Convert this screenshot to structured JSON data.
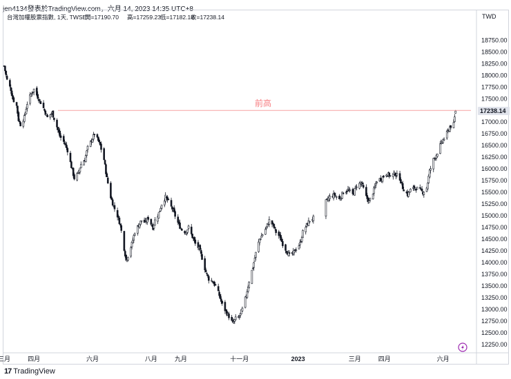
{
  "header": {
    "published_by": "jen4134發表於TradingView.com，六月 14, 2023 14:35 UTC+8"
  },
  "footer": {
    "logo": "17",
    "brand": "TradingView"
  },
  "legend": {
    "symbol": "台灣加權股票指數, 1天, TWSE",
    "open_label": "開=17190.70",
    "high_label": "高=17259.23",
    "low_label": "低=17182.18",
    "close_label": "收=17238.14"
  },
  "colors": {
    "candle": "#131722",
    "hline": "#f7a1a1",
    "annotation": "#f77c80",
    "price_label_bg": "#e0e3eb",
    "axis": "#d1d4dc",
    "icon": "#9c27b0"
  },
  "chart_data": {
    "type": "candlestick",
    "currency": "TWD",
    "ylim": [
      12100,
      19050
    ],
    "y_ticks": [
      12250,
      12500,
      12750,
      13000,
      13250,
      13500,
      13750,
      14000,
      14250,
      14500,
      14750,
      15000,
      15250,
      15500,
      15750,
      16000,
      16250,
      16500,
      16750,
      17000,
      17250,
      17500,
      17750,
      18000,
      18250,
      18500,
      18750
    ],
    "y_tick_labels": [
      "12250.00",
      "12500.00",
      "12750.00",
      "13000.00",
      "13250.00",
      "13500.00",
      "13750.00",
      "14000.00",
      "14250.00",
      "14500.00",
      "14750.00",
      "15000.00",
      "15250.00",
      "15500.00",
      "15750.00",
      "16000.00",
      "16250.00",
      "16500.00",
      "16750.00",
      "17000.00",
      "17250.00",
      "17500.00",
      "17750.00",
      "18000.00",
      "18250.00",
      "18500.00",
      "18750.00"
    ],
    "x_start": "2022-03-01",
    "x_end": "2023-06-30",
    "x_ticks": [
      {
        "date": "2022-03-01",
        "label": "三月"
      },
      {
        "date": "2022-04-01",
        "label": "四月"
      },
      {
        "date": "2022-06-01",
        "label": "六月"
      },
      {
        "date": "2022-08-01",
        "label": "八月"
      },
      {
        "date": "2022-09-01",
        "label": "九月"
      },
      {
        "date": "2022-11-01",
        "label": "十一月"
      },
      {
        "date": "2023-01-01",
        "label": "2023"
      },
      {
        "date": "2023-03-01",
        "label": "三月"
      },
      {
        "date": "2023-04-01",
        "label": "四月"
      },
      {
        "date": "2023-06-01",
        "label": "六月"
      }
    ],
    "last_price": 17238.14,
    "last_price_label": "17238.14",
    "horizontal_line": {
      "value": 17250,
      "label": "前高"
    },
    "close_series": [
      {
        "date": "2022-03-01",
        "close": 18200
      },
      {
        "date": "2022-03-04",
        "close": 17900
      },
      {
        "date": "2022-03-08",
        "close": 17700
      },
      {
        "date": "2022-03-10",
        "close": 17500
      },
      {
        "date": "2022-03-14",
        "close": 17350
      },
      {
        "date": "2022-03-16",
        "close": 17050
      },
      {
        "date": "2022-03-18",
        "close": 16950
      },
      {
        "date": "2022-03-22",
        "close": 17100
      },
      {
        "date": "2022-03-25",
        "close": 17400
      },
      {
        "date": "2022-03-29",
        "close": 17600
      },
      {
        "date": "2022-04-01",
        "close": 17700
      },
      {
        "date": "2022-04-06",
        "close": 17500
      },
      {
        "date": "2022-04-11",
        "close": 17300
      },
      {
        "date": "2022-04-15",
        "close": 17100
      },
      {
        "date": "2022-04-20",
        "close": 17200
      },
      {
        "date": "2022-04-25",
        "close": 16900
      },
      {
        "date": "2022-04-28",
        "close": 16700
      },
      {
        "date": "2022-05-03",
        "close": 16550
      },
      {
        "date": "2022-05-06",
        "close": 16400
      },
      {
        "date": "2022-05-10",
        "close": 16050
      },
      {
        "date": "2022-05-13",
        "close": 15800
      },
      {
        "date": "2022-05-17",
        "close": 15900
      },
      {
        "date": "2022-05-20",
        "close": 16100
      },
      {
        "date": "2022-05-24",
        "close": 16200
      },
      {
        "date": "2022-05-27",
        "close": 16450
      },
      {
        "date": "2022-06-01",
        "close": 16650
      },
      {
        "date": "2022-06-03",
        "close": 16750
      },
      {
        "date": "2022-06-07",
        "close": 16600
      },
      {
        "date": "2022-06-09",
        "close": 16500
      },
      {
        "date": "2022-06-13",
        "close": 16200
      },
      {
        "date": "2022-06-16",
        "close": 15800
      },
      {
        "date": "2022-06-20",
        "close": 15400
      },
      {
        "date": "2022-06-23",
        "close": 15200
      },
      {
        "date": "2022-06-27",
        "close": 15000
      },
      {
        "date": "2022-06-30",
        "close": 14800
      },
      {
        "date": "2022-07-04",
        "close": 14300
      },
      {
        "date": "2022-07-06",
        "close": 14050
      },
      {
        "date": "2022-07-08",
        "close": 14150
      },
      {
        "date": "2022-07-12",
        "close": 14400
      },
      {
        "date": "2022-07-15",
        "close": 14650
      },
      {
        "date": "2022-07-19",
        "close": 14800
      },
      {
        "date": "2022-07-22",
        "close": 14900
      },
      {
        "date": "2022-07-26",
        "close": 14850
      },
      {
        "date": "2022-07-29",
        "close": 14950
      },
      {
        "date": "2022-08-03",
        "close": 14750
      },
      {
        "date": "2022-08-05",
        "close": 14900
      },
      {
        "date": "2022-08-09",
        "close": 15050
      },
      {
        "date": "2022-08-12",
        "close": 15250
      },
      {
        "date": "2022-08-16",
        "close": 15400
      },
      {
        "date": "2022-08-19",
        "close": 15300
      },
      {
        "date": "2022-08-23",
        "close": 15150
      },
      {
        "date": "2022-08-26",
        "close": 15000
      },
      {
        "date": "2022-08-30",
        "close": 14800
      },
      {
        "date": "2022-09-02",
        "close": 14700
      },
      {
        "date": "2022-09-06",
        "close": 14650
      },
      {
        "date": "2022-09-09",
        "close": 14750
      },
      {
        "date": "2022-09-13",
        "close": 14550
      },
      {
        "date": "2022-09-16",
        "close": 14400
      },
      {
        "date": "2022-09-20",
        "close": 14300
      },
      {
        "date": "2022-09-23",
        "close": 14100
      },
      {
        "date": "2022-09-27",
        "close": 13800
      },
      {
        "date": "2022-09-30",
        "close": 13650
      },
      {
        "date": "2022-10-04",
        "close": 13600
      },
      {
        "date": "2022-10-07",
        "close": 13500
      },
      {
        "date": "2022-10-11",
        "close": 13300
      },
      {
        "date": "2022-10-14",
        "close": 13100
      },
      {
        "date": "2022-10-18",
        "close": 12950
      },
      {
        "date": "2022-10-21",
        "close": 12850
      },
      {
        "date": "2022-10-25",
        "close": 12700
      },
      {
        "date": "2022-10-28",
        "close": 12800
      },
      {
        "date": "2022-11-01",
        "close": 12850
      },
      {
        "date": "2022-11-04",
        "close": 13000
      },
      {
        "date": "2022-11-08",
        "close": 13300
      },
      {
        "date": "2022-11-11",
        "close": 13600
      },
      {
        "date": "2022-11-15",
        "close": 13900
      },
      {
        "date": "2022-11-18",
        "close": 14200
      },
      {
        "date": "2022-11-22",
        "close": 14500
      },
      {
        "date": "2022-11-25",
        "close": 14600
      },
      {
        "date": "2022-11-29",
        "close": 14750
      },
      {
        "date": "2022-12-02",
        "close": 14900
      },
      {
        "date": "2022-12-06",
        "close": 14800
      },
      {
        "date": "2022-12-09",
        "close": 14650
      },
      {
        "date": "2022-12-13",
        "close": 14550
      },
      {
        "date": "2022-12-16",
        "close": 14400
      },
      {
        "date": "2022-12-20",
        "close": 14250
      },
      {
        "date": "2022-12-23",
        "close": 14150
      },
      {
        "date": "2022-12-27",
        "close": 14200
      },
      {
        "date": "2022-12-30",
        "close": 14300
      },
      {
        "date": "2023-01-03",
        "close": 14400
      },
      {
        "date": "2023-01-06",
        "close": 14650
      },
      {
        "date": "2023-01-10",
        "close": 14800
      },
      {
        "date": "2023-01-13",
        "close": 14900
      },
      {
        "date": "2023-01-17",
        "close": 14950
      },
      {
        "date": "2023-01-30",
        "close": 15300
      },
      {
        "date": "2023-02-03",
        "close": 15400
      },
      {
        "date": "2023-02-08",
        "close": 15450
      },
      {
        "date": "2023-02-13",
        "close": 15350
      },
      {
        "date": "2023-02-17",
        "close": 15500
      },
      {
        "date": "2023-02-22",
        "close": 15550
      },
      {
        "date": "2023-02-27",
        "close": 15450
      },
      {
        "date": "2023-03-03",
        "close": 15650
      },
      {
        "date": "2023-03-08",
        "close": 15700
      },
      {
        "date": "2023-03-13",
        "close": 15400
      },
      {
        "date": "2023-03-16",
        "close": 15300
      },
      {
        "date": "2023-03-21",
        "close": 15550
      },
      {
        "date": "2023-03-24",
        "close": 15750
      },
      {
        "date": "2023-03-29",
        "close": 15800
      },
      {
        "date": "2023-04-03",
        "close": 15900
      },
      {
        "date": "2023-04-07",
        "close": 15850
      },
      {
        "date": "2023-04-12",
        "close": 15900
      },
      {
        "date": "2023-04-17",
        "close": 15800
      },
      {
        "date": "2023-04-20",
        "close": 15600
      },
      {
        "date": "2023-04-25",
        "close": 15450
      },
      {
        "date": "2023-04-28",
        "close": 15550
      },
      {
        "date": "2023-05-03",
        "close": 15600
      },
      {
        "date": "2023-05-08",
        "close": 15550
      },
      {
        "date": "2023-05-11",
        "close": 15500
      },
      {
        "date": "2023-05-15",
        "close": 15600
      },
      {
        "date": "2023-05-18",
        "close": 15950
      },
      {
        "date": "2023-05-22",
        "close": 16200
      },
      {
        "date": "2023-05-25",
        "close": 16300
      },
      {
        "date": "2023-05-30",
        "close": 16550
      },
      {
        "date": "2023-06-02",
        "close": 16650
      },
      {
        "date": "2023-06-06",
        "close": 16800
      },
      {
        "date": "2023-06-08",
        "close": 16900
      },
      {
        "date": "2023-06-12",
        "close": 16950
      },
      {
        "date": "2023-06-14",
        "close": 17238.14
      }
    ]
  }
}
